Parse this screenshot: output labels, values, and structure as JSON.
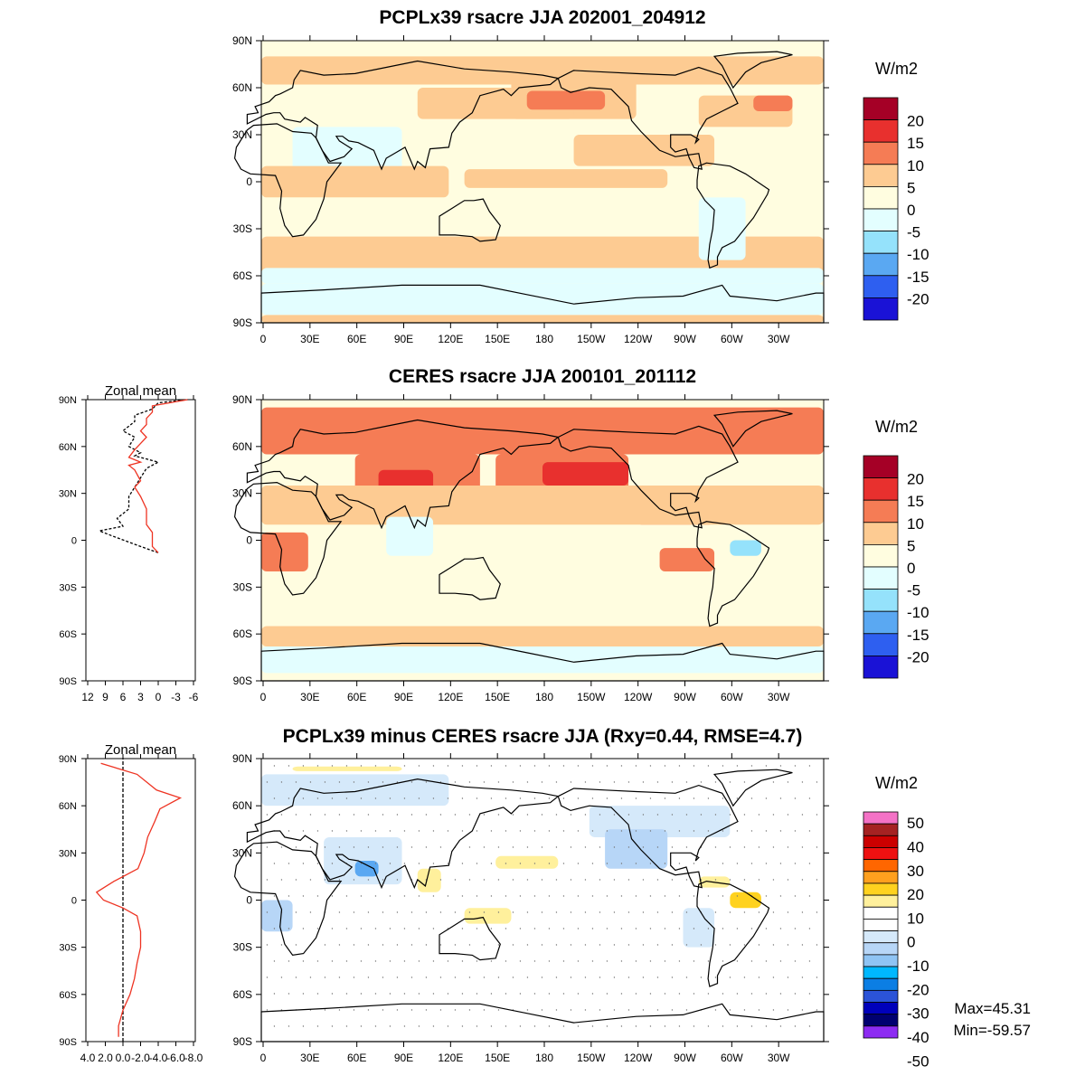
{
  "panels": [
    {
      "title": "PCPLx39 rsacre JJA 202001_204912",
      "unit": "W/m2",
      "colorbar": {
        "colors": [
          "#a50026",
          "#e8302e",
          "#f57c55",
          "#fdcb92",
          "#fffde0",
          "#e3feff",
          "#95e2fb",
          "#5aa8f2",
          "#2e5ff0",
          "#1a12d6"
        ],
        "labels": [
          "20",
          "15",
          "10",
          "5",
          "0",
          "-5",
          "-10",
          "-15",
          "-20"
        ]
      }
    },
    {
      "title": "CERES rsacre JJA 200101_201112",
      "unit": "W/m2",
      "colorbar": {
        "colors": [
          "#a50026",
          "#e8302e",
          "#f57c55",
          "#fdcb92",
          "#fffde0",
          "#e3feff",
          "#95e2fb",
          "#5aa8f2",
          "#2e5ff0",
          "#1a12d6"
        ],
        "labels": [
          "20",
          "15",
          "10",
          "5",
          "0",
          "-5",
          "-10",
          "-15",
          "-20"
        ]
      }
    },
    {
      "title": "PCPLx39 minus CERES rsacre JJA (Rxy=0.44, RMSE=4.7)",
      "unit": "W/m2",
      "colorbar": {
        "colors": [
          "#f472c6",
          "#a52222",
          "#cc0000",
          "#ee1111",
          "#ff6600",
          "#ffa01e",
          "#ffd21f",
          "#fff09c",
          "#ffffff",
          "#ffffff",
          "#d5e9fa",
          "#b7d6f7",
          "#8fc4f4",
          "#00b8ff",
          "#0b7ee4",
          "#2b53d8",
          "#0000bb",
          "#000070",
          "#8d2bf2"
        ],
        "labels": [
          "50",
          "40",
          "30",
          "20",
          "10",
          "0",
          "-10",
          "-20",
          "-30",
          "-40",
          "-50"
        ]
      },
      "stats": {
        "max": "Max=45.31",
        "min": "Min=-59.57"
      }
    }
  ],
  "map_axis": {
    "lat_ticks": [
      "90N",
      "60N",
      "30N",
      "0",
      "30S",
      "60S",
      "90S"
    ],
    "lon_ticks": [
      "0",
      "30E",
      "60E",
      "90E",
      "120E",
      "150E",
      "180",
      "150W",
      "120W",
      "90W",
      "60W",
      "30W"
    ]
  },
  "zonal_mean": {
    "title": "Zonal mean",
    "xticks_panel2": [
      "12",
      "9",
      "6",
      "3",
      "0",
      "-3",
      "-6"
    ],
    "xticks_panel3": [
      "4.0",
      "2.0",
      "0.0",
      "-2.0",
      "-4.0",
      "-6.0",
      "-8.0"
    ]
  }
}
